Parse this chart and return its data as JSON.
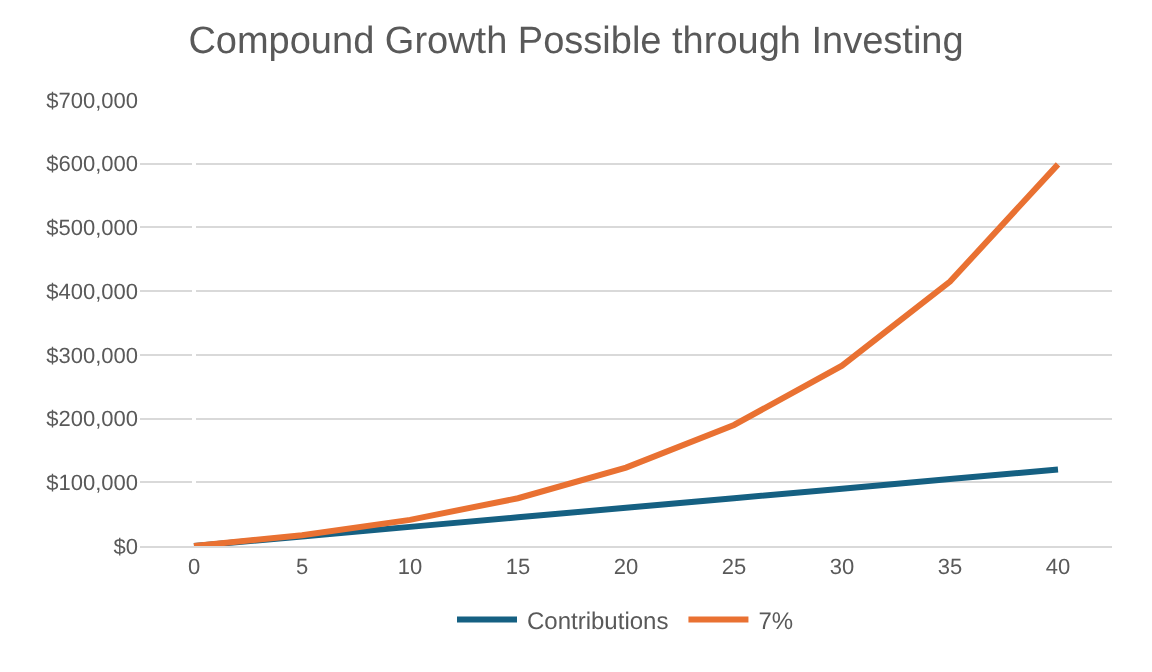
{
  "chart_data": {
    "type": "line",
    "title": "Compound Growth Possible through Investing",
    "categories": [
      "0",
      "5",
      "10",
      "15",
      "20",
      "25",
      "30",
      "35",
      "40"
    ],
    "series": [
      {
        "name": "Contributions",
        "color": "#156082",
        "values": [
          0,
          15000,
          30000,
          45000,
          60000,
          75000,
          90000,
          105000,
          120000
        ]
      },
      {
        "name": "7%",
        "color": "#e97132",
        "values": [
          0,
          17000,
          41000,
          75000,
          123000,
          190000,
          283000,
          415000,
          599000
        ]
      }
    ],
    "ylim": [
      0,
      700000
    ],
    "yticks": [
      {
        "value": 0,
        "label": "$0"
      },
      {
        "value": 100000,
        "label": "$100,000"
      },
      {
        "value": 200000,
        "label": "$200,000"
      },
      {
        "value": 300000,
        "label": "$300,000"
      },
      {
        "value": 400000,
        "label": "$400,000"
      },
      {
        "value": 500000,
        "label": "$500,000"
      },
      {
        "value": 600000,
        "label": "$600,000"
      },
      {
        "value": 700000,
        "label": "$700,000"
      }
    ],
    "grid": "y",
    "legend": "bottom",
    "marker": "none",
    "line_style": "solid"
  }
}
